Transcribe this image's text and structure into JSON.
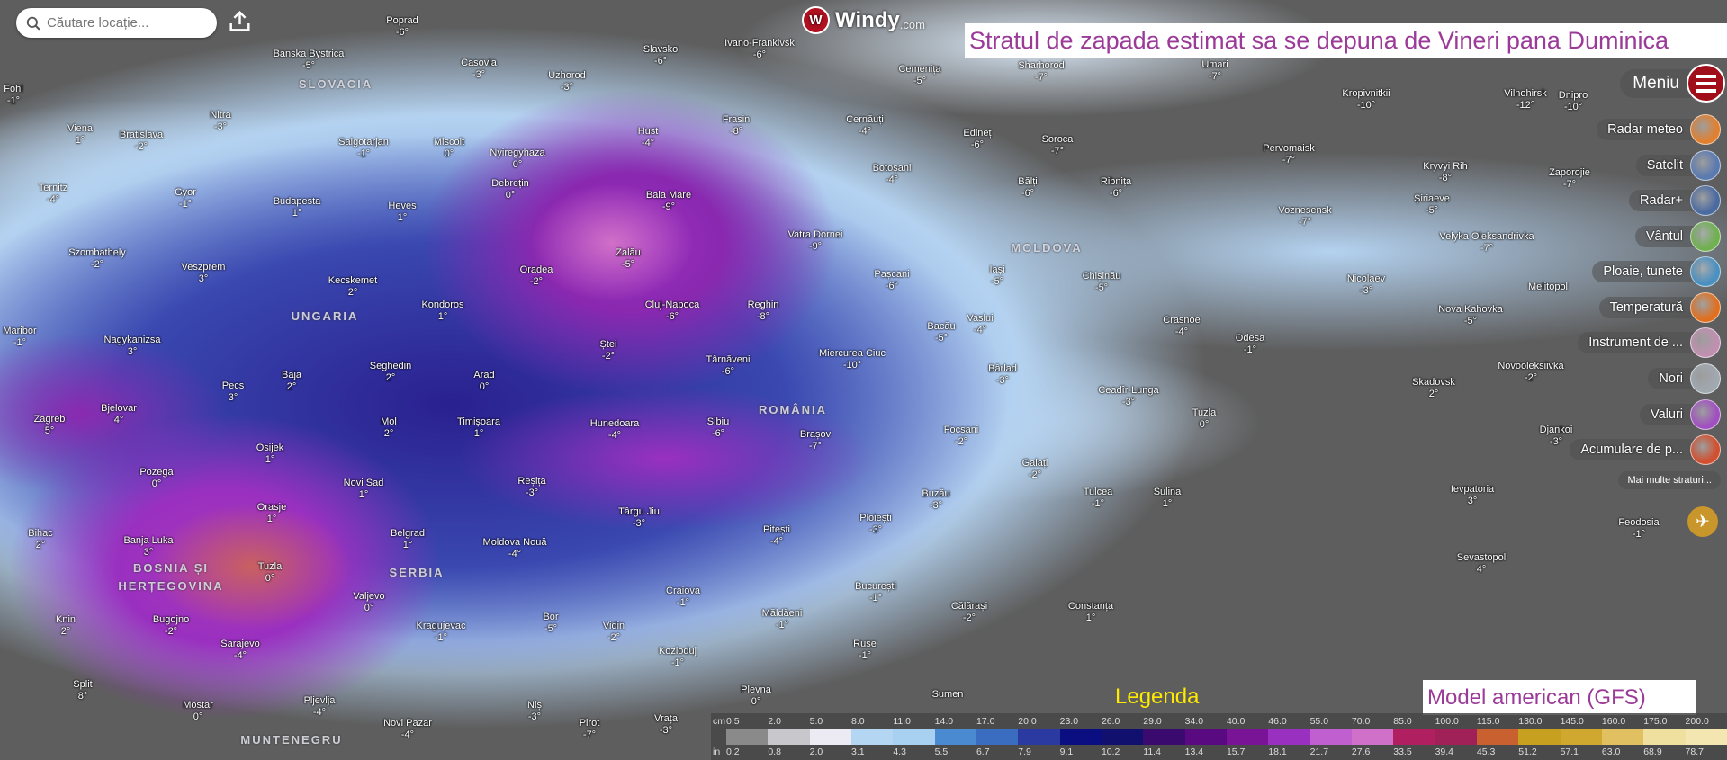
{
  "search": {
    "placeholder": "Căutare locație..."
  },
  "logo": {
    "text": "Windy",
    "suffix": ".com"
  },
  "title": "Stratul de zapada estimat sa se depuna de Vineri pana Duminica",
  "menu": {
    "label": "Meniu",
    "items": [
      {
        "label": "Radar meteo",
        "icon": "radar-icon",
        "color": "#e08030"
      },
      {
        "label": "Satelit",
        "icon": "satellite-icon",
        "color": "#5a7ab0"
      },
      {
        "label": "Radar+",
        "icon": "radar-plus-icon",
        "color": "#4a6aa0"
      },
      {
        "label": "Vântul",
        "icon": "wind-icon",
        "color": "#70b050"
      },
      {
        "label": "Ploaie, tunete",
        "icon": "rain-icon",
        "color": "#4a90c0"
      },
      {
        "label": "Temperatură",
        "icon": "temperature-icon",
        "color": "#e07020"
      },
      {
        "label": "Instrument de ...",
        "icon": "tool-icon",
        "color": "#c090b0"
      },
      {
        "label": "Nori",
        "icon": "clouds-icon",
        "color": "#a0a8b0"
      },
      {
        "label": "Valuri",
        "icon": "waves-icon",
        "color": "#a050c0"
      },
      {
        "label": "Acumulare de p...",
        "icon": "accumulation-icon",
        "color": "#d05030"
      }
    ],
    "more": "Mai multe straturi...",
    "plane_icon": "airplane-icon"
  },
  "legend": {
    "label": "Legenda",
    "unit_cm": "cm",
    "unit_in": "in",
    "cm": [
      "0.5",
      "2.0",
      "5.0",
      "8.0",
      "11.0",
      "14.0",
      "17.0",
      "20.0",
      "23.0",
      "26.0",
      "29.0",
      "34.0",
      "40.0",
      "46.0",
      "55.0",
      "70.0",
      "85.0",
      "100.0",
      "115.0",
      "130.0",
      "145.0",
      "160.0",
      "175.0",
      "200.0"
    ],
    "in": [
      "0.2",
      "0.8",
      "2.0",
      "3.1",
      "4.3",
      "5.5",
      "6.7",
      "7.9",
      "9.1",
      "10.2",
      "11.4",
      "13.4",
      "15.7",
      "18.1",
      "21.7",
      "27.6",
      "33.5",
      "39.4",
      "45.3",
      "51.2",
      "57.1",
      "63.0",
      "68.9",
      "78.7"
    ],
    "colors": [
      "#8a8a8a",
      "#c8c8cc",
      "#eceaf2",
      "#b4d6f2",
      "#a8d0f0",
      "#4a8ad0",
      "#3a6cc0",
      "#2a3aa0",
      "#0a0e80",
      "#12106e",
      "#3a0a6e",
      "#5a0a80",
      "#7a1496",
      "#9a30c0",
      "#c060d0",
      "#d070c8",
      "#b02060",
      "#a02058",
      "#c86030",
      "#c8a020",
      "#d0a830",
      "#e0c060",
      "#f0e0a0",
      "#f4e6b0"
    ]
  },
  "model": "Model american (GFS)",
  "countries": [
    "SLOVACIA",
    "UNGARIA",
    "MOLDOVA",
    "ROMÂNIA",
    "BOSNIA ȘI",
    "HERȚEGOVINA",
    "SERBIA",
    "MUNTENEGRU"
  ],
  "cities": [
    {
      "name": "Poprad",
      "temp": "-6°"
    },
    {
      "name": "Banska Bystrica",
      "temp": "-5°"
    },
    {
      "name": "Casovia",
      "temp": "-3°"
    },
    {
      "name": "Uzhorod",
      "temp": "-3°"
    },
    {
      "name": "Slavsko",
      "temp": "-6°"
    },
    {
      "name": "Ivano-Frankivsk",
      "temp": "-6°"
    },
    {
      "name": "Cernăuți",
      "temp": "-4°"
    },
    {
      "name": "Cemenița",
      "temp": "-5°"
    },
    {
      "name": "Sharhorod",
      "temp": "-7°"
    },
    {
      "name": "Umari",
      "temp": "-7°"
    },
    {
      "name": "Kropivnitkii",
      "temp": "-10°"
    },
    {
      "name": "Vilnohirsk",
      "temp": "-12°"
    },
    {
      "name": "Dnipro",
      "temp": "-10°"
    },
    {
      "name": "Fohl",
      "temp": "-1°"
    },
    {
      "name": "Viena",
      "temp": "1°"
    },
    {
      "name": "Bratislava",
      "temp": "-2°"
    },
    {
      "name": "Nitra",
      "temp": "-3°"
    },
    {
      "name": "Salgotarjan",
      "temp": "-1°"
    },
    {
      "name": "Miscolt",
      "temp": "0°"
    },
    {
      "name": "Nyiregyhaza",
      "temp": "0°"
    },
    {
      "name": "Hust",
      "temp": "-4°"
    },
    {
      "name": "Frasin",
      "temp": "-8°"
    },
    {
      "name": "Edineț",
      "temp": "-6°"
    },
    {
      "name": "Soroca",
      "temp": "-7°"
    },
    {
      "name": "Pervomaisk",
      "temp": "-7°"
    },
    {
      "name": "Kryvyi Rih",
      "temp": "-8°"
    },
    {
      "name": "Zaporojie",
      "temp": "-7°"
    },
    {
      "name": "Ternitz",
      "temp": "-4°"
    },
    {
      "name": "Gyor",
      "temp": "-1°"
    },
    {
      "name": "Budapesta",
      "temp": "1°"
    },
    {
      "name": "Heves",
      "temp": "1°"
    },
    {
      "name": "Debrețin",
      "temp": "0°"
    },
    {
      "name": "Baia Mare",
      "temp": "-9°"
    },
    {
      "name": "Botoșani",
      "temp": "-4°"
    },
    {
      "name": "Bălți",
      "temp": "-6°"
    },
    {
      "name": "Ribnița",
      "temp": "-6°"
    },
    {
      "name": "Voznesensk",
      "temp": "-7°"
    },
    {
      "name": "Șiriaeve",
      "temp": "-5°"
    },
    {
      "name": "Velyka Oleksandrivka",
      "temp": "-7°"
    },
    {
      "name": "Szombathely",
      "temp": "-2°"
    },
    {
      "name": "Veszprem",
      "temp": "3°"
    },
    {
      "name": "Vatra Dornei",
      "temp": "-9°"
    },
    {
      "name": "Pașcani",
      "temp": "-6°"
    },
    {
      "name": "Chișinău",
      "temp": "-5°"
    },
    {
      "name": "Iași",
      "temp": "-5°"
    },
    {
      "name": "Kecskemet",
      "temp": "2°"
    },
    {
      "name": "Oradea",
      "temp": "-2°"
    },
    {
      "name": "Zalău",
      "temp": "-5°"
    },
    {
      "name": "Cluj-Napoca",
      "temp": "-6°"
    },
    {
      "name": "Reghin",
      "temp": "-8°"
    },
    {
      "name": "Nicolaev",
      "temp": "-3°"
    },
    {
      "name": "Nova Kahovka",
      "temp": "-5°"
    },
    {
      "name": "Maribor",
      "temp": "-1°"
    },
    {
      "name": "Nagykanizsa",
      "temp": "3°"
    },
    {
      "name": "Kondoros",
      "temp": "1°"
    },
    {
      "name": "Ștei",
      "temp": "-2°"
    },
    {
      "name": "Bacău",
      "temp": "-5°"
    },
    {
      "name": "Vaslui",
      "temp": "-4°"
    },
    {
      "name": "Crasnoe",
      "temp": "-4°"
    },
    {
      "name": "Odesa",
      "temp": "-1°"
    },
    {
      "name": "Baja",
      "temp": "2°"
    },
    {
      "name": "Pecs",
      "temp": "3°"
    },
    {
      "name": "Seghedin",
      "temp": "2°"
    },
    {
      "name": "Arad",
      "temp": "0°"
    },
    {
      "name": "Târnăveni",
      "temp": "-6°"
    },
    {
      "name": "Miercurea Ciuc",
      "temp": "-10°"
    },
    {
      "name": "Bârlad",
      "temp": "-3°"
    },
    {
      "name": "Ceadîr-Lunga",
      "temp": "-3°"
    },
    {
      "name": "Skadovsk",
      "temp": "2°"
    },
    {
      "name": "Novooleksiivka",
      "temp": "-2°"
    },
    {
      "name": "Zagreb",
      "temp": "5°"
    },
    {
      "name": "Bjelovar",
      "temp": "4°"
    },
    {
      "name": "Mol",
      "temp": "2°"
    },
    {
      "name": "Timișoara",
      "temp": "1°"
    },
    {
      "name": "Osijek",
      "temp": "1°"
    },
    {
      "name": "Hunedoara",
      "temp": "-4°"
    },
    {
      "name": "Sibiu",
      "temp": "-6°"
    },
    {
      "name": "Brașov",
      "temp": "-7°"
    },
    {
      "name": "Focșani",
      "temp": "-2°"
    },
    {
      "name": "Tuzla",
      "temp": "0°"
    },
    {
      "name": "Djankoi",
      "temp": "-3°"
    },
    {
      "name": "Pozega",
      "temp": "0°"
    },
    {
      "name": "Novi Sad",
      "temp": "1°"
    },
    {
      "name": "Reșița",
      "temp": "-3°"
    },
    {
      "name": "Galați",
      "temp": "-2°"
    },
    {
      "name": "Orasje",
      "temp": "1°"
    },
    {
      "name": "Târgu Jiu",
      "temp": "-3°"
    },
    {
      "name": "Buzău",
      "temp": "-3°"
    },
    {
      "name": "Tulcea",
      "temp": "-1°"
    },
    {
      "name": "Sulina",
      "temp": "1°"
    },
    {
      "name": "Ievpatoria",
      "temp": "3°"
    },
    {
      "name": "Feodosia",
      "temp": "-1°"
    },
    {
      "name": "Bihac",
      "temp": "2°"
    },
    {
      "name": "Banja Luka",
      "temp": "3°"
    },
    {
      "name": "Belgrad",
      "temp": "1°"
    },
    {
      "name": "Moldova Nouă",
      "temp": "-4°"
    },
    {
      "name": "Pitești",
      "temp": "-4°"
    },
    {
      "name": "Ploiești",
      "temp": "-3°"
    },
    {
      "name": "Tuzla",
      "temp": "0°"
    },
    {
      "name": "Sevastopol",
      "temp": "4°"
    },
    {
      "name": "Valjevo",
      "temp": "0°"
    },
    {
      "name": "Craiova",
      "temp": "-1°"
    },
    {
      "name": "București",
      "temp": "-1°"
    },
    {
      "name": "Călărași",
      "temp": "-2°"
    },
    {
      "name": "Constanța",
      "temp": "1°"
    },
    {
      "name": "Knin",
      "temp": "2°"
    },
    {
      "name": "Bugojno",
      "temp": "-2°"
    },
    {
      "name": "Sarajevo",
      "temp": "-4°"
    },
    {
      "name": "Kragujevac",
      "temp": "-1°"
    },
    {
      "name": "Bor",
      "temp": "-5°"
    },
    {
      "name": "Vidin",
      "temp": "-2°"
    },
    {
      "name": "Măldăeni",
      "temp": "-1°"
    },
    {
      "name": "Ruse",
      "temp": "-1°"
    },
    {
      "name": "Kozloduj",
      "temp": "-1°"
    },
    {
      "name": "Split",
      "temp": "8°"
    },
    {
      "name": "Mostar",
      "temp": "0°"
    },
    {
      "name": "Pljevlja",
      "temp": "-4°"
    },
    {
      "name": "Novi Pazar",
      "temp": "-4°"
    },
    {
      "name": "Niș",
      "temp": "-3°"
    },
    {
      "name": "Pirot",
      "temp": "-7°"
    },
    {
      "name": "Plevna",
      "temp": "0°"
    },
    {
      "name": "Vrața",
      "temp": "-3°"
    },
    {
      "name": "Sumen",
      "temp": ""
    },
    {
      "name": "Melitopol",
      "temp": ""
    }
  ]
}
